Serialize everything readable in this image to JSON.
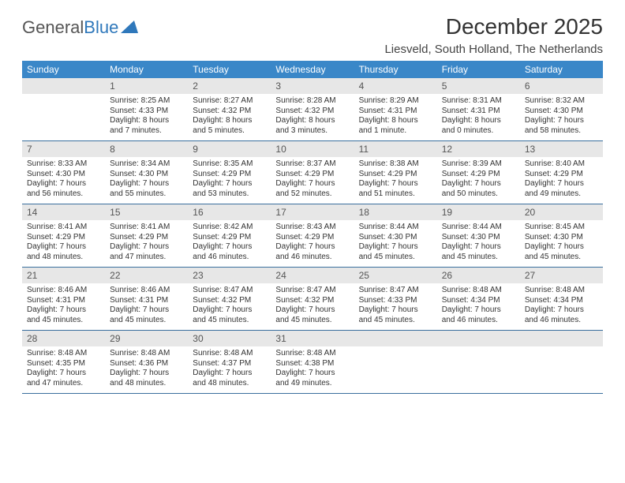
{
  "logo": {
    "text1": "General",
    "text2": "Blue"
  },
  "title": "December 2025",
  "subtitle": "Liesveld, South Holland, The Netherlands",
  "colors": {
    "header_bg": "#3a87c8",
    "header_text": "#ffffff",
    "daynum_bg": "#e7e7e7",
    "week_border": "#3a6f9e",
    "logo_blue": "#2f78bb"
  },
  "days_of_week": [
    "Sunday",
    "Monday",
    "Tuesday",
    "Wednesday",
    "Thursday",
    "Friday",
    "Saturday"
  ],
  "weeks": [
    [
      {
        "n": "",
        "sunrise": "",
        "sunset": "",
        "daylight": ""
      },
      {
        "n": "1",
        "sunrise": "Sunrise: 8:25 AM",
        "sunset": "Sunset: 4:33 PM",
        "daylight": "Daylight: 8 hours and 7 minutes."
      },
      {
        "n": "2",
        "sunrise": "Sunrise: 8:27 AM",
        "sunset": "Sunset: 4:32 PM",
        "daylight": "Daylight: 8 hours and 5 minutes."
      },
      {
        "n": "3",
        "sunrise": "Sunrise: 8:28 AM",
        "sunset": "Sunset: 4:32 PM",
        "daylight": "Daylight: 8 hours and 3 minutes."
      },
      {
        "n": "4",
        "sunrise": "Sunrise: 8:29 AM",
        "sunset": "Sunset: 4:31 PM",
        "daylight": "Daylight: 8 hours and 1 minute."
      },
      {
        "n": "5",
        "sunrise": "Sunrise: 8:31 AM",
        "sunset": "Sunset: 4:31 PM",
        "daylight": "Daylight: 8 hours and 0 minutes."
      },
      {
        "n": "6",
        "sunrise": "Sunrise: 8:32 AM",
        "sunset": "Sunset: 4:30 PM",
        "daylight": "Daylight: 7 hours and 58 minutes."
      }
    ],
    [
      {
        "n": "7",
        "sunrise": "Sunrise: 8:33 AM",
        "sunset": "Sunset: 4:30 PM",
        "daylight": "Daylight: 7 hours and 56 minutes."
      },
      {
        "n": "8",
        "sunrise": "Sunrise: 8:34 AM",
        "sunset": "Sunset: 4:30 PM",
        "daylight": "Daylight: 7 hours and 55 minutes."
      },
      {
        "n": "9",
        "sunrise": "Sunrise: 8:35 AM",
        "sunset": "Sunset: 4:29 PM",
        "daylight": "Daylight: 7 hours and 53 minutes."
      },
      {
        "n": "10",
        "sunrise": "Sunrise: 8:37 AM",
        "sunset": "Sunset: 4:29 PM",
        "daylight": "Daylight: 7 hours and 52 minutes."
      },
      {
        "n": "11",
        "sunrise": "Sunrise: 8:38 AM",
        "sunset": "Sunset: 4:29 PM",
        "daylight": "Daylight: 7 hours and 51 minutes."
      },
      {
        "n": "12",
        "sunrise": "Sunrise: 8:39 AM",
        "sunset": "Sunset: 4:29 PM",
        "daylight": "Daylight: 7 hours and 50 minutes."
      },
      {
        "n": "13",
        "sunrise": "Sunrise: 8:40 AM",
        "sunset": "Sunset: 4:29 PM",
        "daylight": "Daylight: 7 hours and 49 minutes."
      }
    ],
    [
      {
        "n": "14",
        "sunrise": "Sunrise: 8:41 AM",
        "sunset": "Sunset: 4:29 PM",
        "daylight": "Daylight: 7 hours and 48 minutes."
      },
      {
        "n": "15",
        "sunrise": "Sunrise: 8:41 AM",
        "sunset": "Sunset: 4:29 PM",
        "daylight": "Daylight: 7 hours and 47 minutes."
      },
      {
        "n": "16",
        "sunrise": "Sunrise: 8:42 AM",
        "sunset": "Sunset: 4:29 PM",
        "daylight": "Daylight: 7 hours and 46 minutes."
      },
      {
        "n": "17",
        "sunrise": "Sunrise: 8:43 AM",
        "sunset": "Sunset: 4:29 PM",
        "daylight": "Daylight: 7 hours and 46 minutes."
      },
      {
        "n": "18",
        "sunrise": "Sunrise: 8:44 AM",
        "sunset": "Sunset: 4:30 PM",
        "daylight": "Daylight: 7 hours and 45 minutes."
      },
      {
        "n": "19",
        "sunrise": "Sunrise: 8:44 AM",
        "sunset": "Sunset: 4:30 PM",
        "daylight": "Daylight: 7 hours and 45 minutes."
      },
      {
        "n": "20",
        "sunrise": "Sunrise: 8:45 AM",
        "sunset": "Sunset: 4:30 PM",
        "daylight": "Daylight: 7 hours and 45 minutes."
      }
    ],
    [
      {
        "n": "21",
        "sunrise": "Sunrise: 8:46 AM",
        "sunset": "Sunset: 4:31 PM",
        "daylight": "Daylight: 7 hours and 45 minutes."
      },
      {
        "n": "22",
        "sunrise": "Sunrise: 8:46 AM",
        "sunset": "Sunset: 4:31 PM",
        "daylight": "Daylight: 7 hours and 45 minutes."
      },
      {
        "n": "23",
        "sunrise": "Sunrise: 8:47 AM",
        "sunset": "Sunset: 4:32 PM",
        "daylight": "Daylight: 7 hours and 45 minutes."
      },
      {
        "n": "24",
        "sunrise": "Sunrise: 8:47 AM",
        "sunset": "Sunset: 4:32 PM",
        "daylight": "Daylight: 7 hours and 45 minutes."
      },
      {
        "n": "25",
        "sunrise": "Sunrise: 8:47 AM",
        "sunset": "Sunset: 4:33 PM",
        "daylight": "Daylight: 7 hours and 45 minutes."
      },
      {
        "n": "26",
        "sunrise": "Sunrise: 8:48 AM",
        "sunset": "Sunset: 4:34 PM",
        "daylight": "Daylight: 7 hours and 46 minutes."
      },
      {
        "n": "27",
        "sunrise": "Sunrise: 8:48 AM",
        "sunset": "Sunset: 4:34 PM",
        "daylight": "Daylight: 7 hours and 46 minutes."
      }
    ],
    [
      {
        "n": "28",
        "sunrise": "Sunrise: 8:48 AM",
        "sunset": "Sunset: 4:35 PM",
        "daylight": "Daylight: 7 hours and 47 minutes."
      },
      {
        "n": "29",
        "sunrise": "Sunrise: 8:48 AM",
        "sunset": "Sunset: 4:36 PM",
        "daylight": "Daylight: 7 hours and 48 minutes."
      },
      {
        "n": "30",
        "sunrise": "Sunrise: 8:48 AM",
        "sunset": "Sunset: 4:37 PM",
        "daylight": "Daylight: 7 hours and 48 minutes."
      },
      {
        "n": "31",
        "sunrise": "Sunrise: 8:48 AM",
        "sunset": "Sunset: 4:38 PM",
        "daylight": "Daylight: 7 hours and 49 minutes."
      },
      {
        "n": "",
        "sunrise": "",
        "sunset": "",
        "daylight": ""
      },
      {
        "n": "",
        "sunrise": "",
        "sunset": "",
        "daylight": ""
      },
      {
        "n": "",
        "sunrise": "",
        "sunset": "",
        "daylight": ""
      }
    ]
  ]
}
